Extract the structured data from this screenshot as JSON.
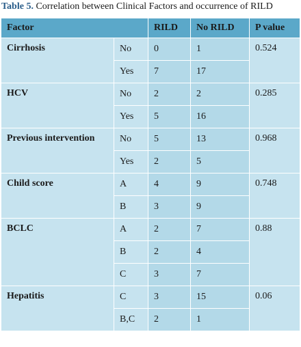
{
  "caption": {
    "label": "Table 5.",
    "text": " Correlation between Clinical Factors and occurrence of RILD"
  },
  "headers": [
    "Factor",
    "RILD",
    "No RILD",
    "P value"
  ],
  "groups": [
    {
      "factor": "Cirrhosis",
      "p": "0.524",
      "rows": [
        {
          "level": "No",
          "rild": "0",
          "norild": "1"
        },
        {
          "level": "Yes",
          "rild": "7",
          "norild": "17"
        }
      ]
    },
    {
      "factor": "HCV",
      "p": "0.285",
      "rows": [
        {
          "level": "No",
          "rild": "2",
          "norild": "2"
        },
        {
          "level": "Yes",
          "rild": "5",
          "norild": "16"
        }
      ]
    },
    {
      "factor": "Previous intervention",
      "p": "0.968",
      "rows": [
        {
          "level": "No",
          "rild": "5",
          "norild": "13"
        },
        {
          "level": "Yes",
          "rild": "2",
          "norild": "5"
        }
      ]
    },
    {
      "factor": "Child score",
      "p": "0.748",
      "rows": [
        {
          "level": "A",
          "rild": "4",
          "norild": "9"
        },
        {
          "level": "B",
          "rild": "3",
          "norild": "9"
        }
      ]
    },
    {
      "factor": "BCLC",
      "p": "0.88",
      "rows": [
        {
          "level": "A",
          "rild": "2",
          "norild": "7"
        },
        {
          "level": "B",
          "rild": "2",
          "norild": "4"
        },
        {
          "level": "C",
          "rild": "3",
          "norild": "7"
        }
      ]
    },
    {
      "factor": "Hepatitis",
      "p": "0.06",
      "rows": [
        {
          "level": "C",
          "rild": "3",
          "norild": "15"
        },
        {
          "level": "B,C",
          "rild": "2",
          "norild": "1"
        }
      ]
    }
  ]
}
